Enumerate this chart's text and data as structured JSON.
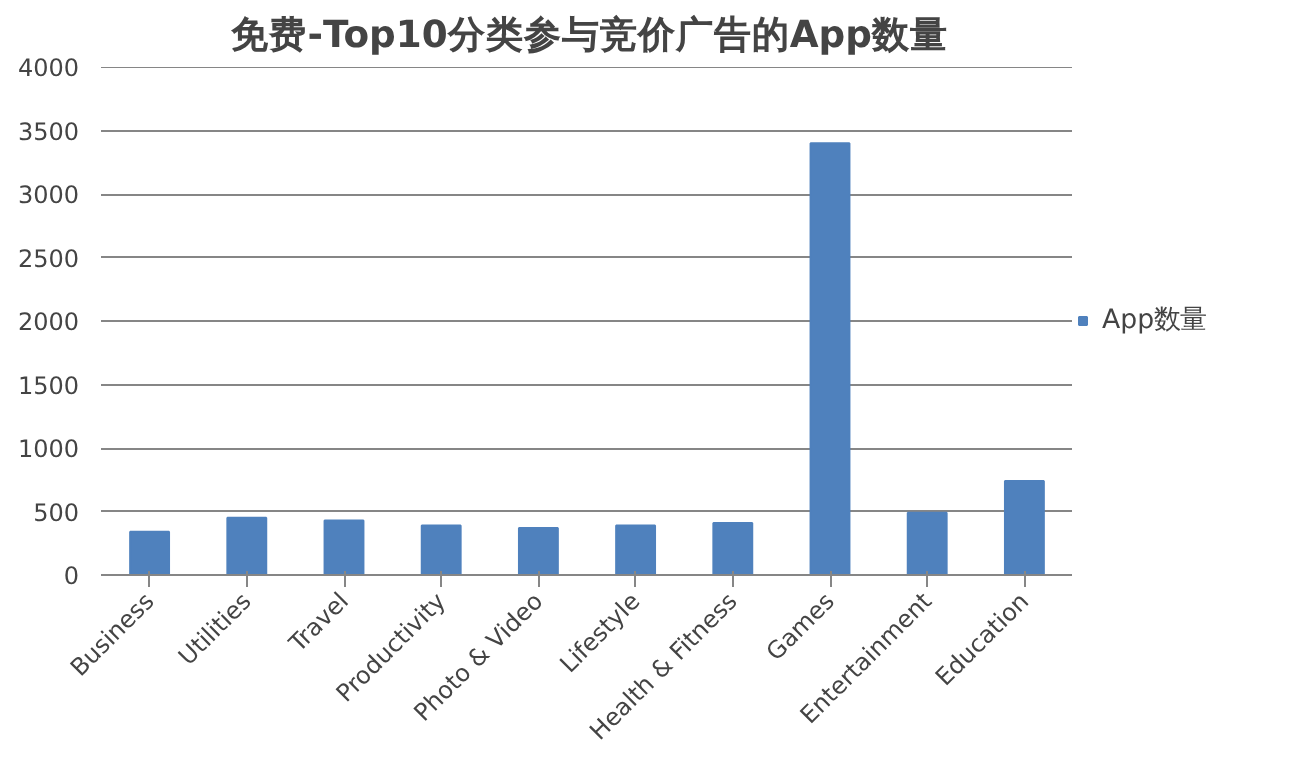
{
  "chart_data": {
    "type": "bar",
    "title": "免费-Top10分类参与竞价广告的App数量",
    "categories": [
      "Business",
      "Utilities",
      "Travel",
      "Productivity",
      "Photo & Video",
      "Lifestyle",
      "Health & Fitness",
      "Games",
      "Entertainment",
      "Education"
    ],
    "series": [
      {
        "name": "App数量",
        "color": "#4f81bd",
        "values": [
          340,
          450,
          430,
          390,
          370,
          390,
          410,
          3400,
          490,
          740
        ]
      }
    ],
    "ylim": [
      0,
      4000
    ],
    "yticks": [
      0,
      500,
      1000,
      1500,
      2000,
      2500,
      3000,
      3500,
      4000
    ],
    "grid": "y",
    "legend": "right"
  }
}
